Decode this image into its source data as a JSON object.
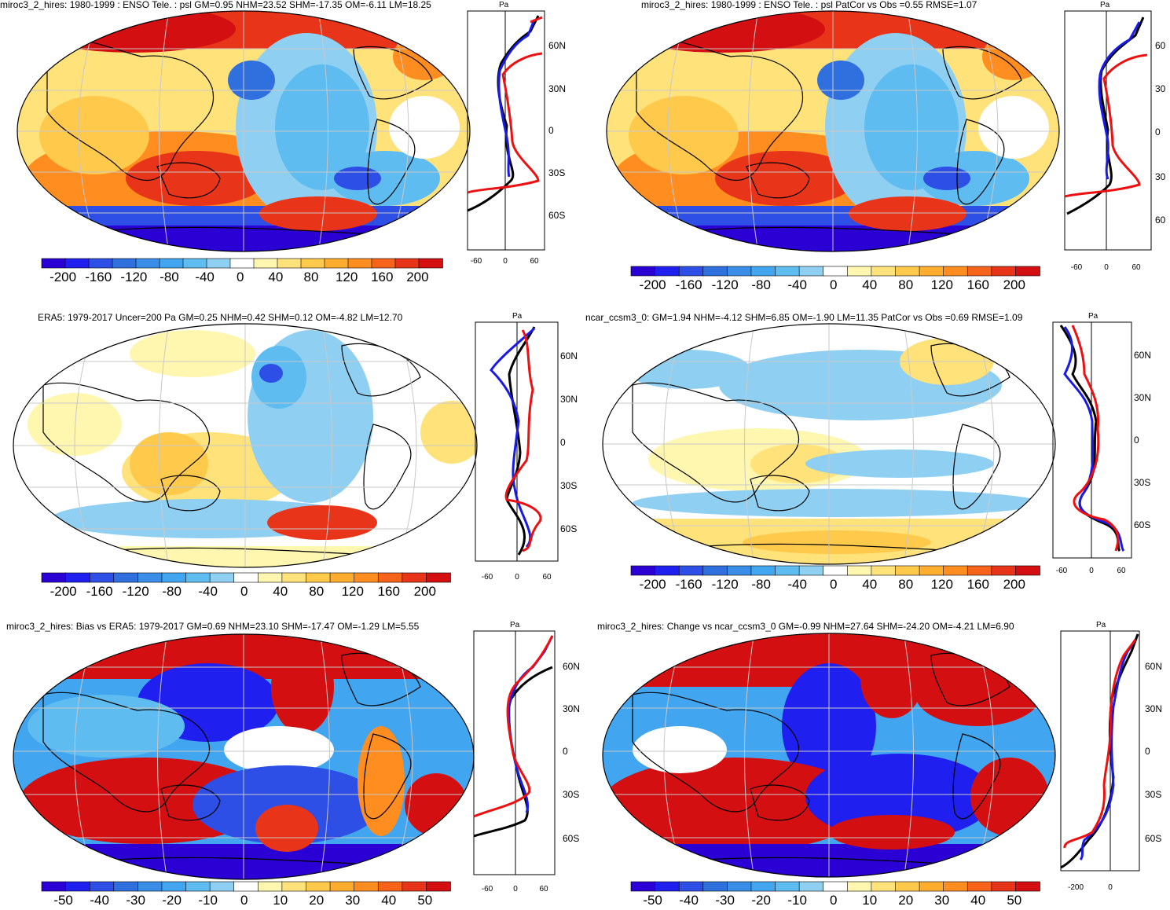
{
  "colors": {
    "palette_blue_to_red": [
      "#2a00d4",
      "#1f1ff0",
      "#2d4fe6",
      "#2f6fde",
      "#3a8ee8",
      "#41a6ef",
      "#5ebcf0",
      "#8fd0f2",
      "#ffffff",
      "#fff6b0",
      "#ffe27a",
      "#ffc94b",
      "#ffad2f",
      "#ff8d1f",
      "#f7631a",
      "#e8351a",
      "#d40f12"
    ],
    "land": "#000000",
    "grid": "#c8c8c8",
    "model_line": "#ee1010",
    "obs_line": "#1a1ae6",
    "mean_line": "#000000"
  },
  "panels": [
    {
      "id": "top-left",
      "title": "miroc3_2_hires: 1980-1999 : ENSO Tele. : psl GM=0.95 NHM=23.52 SHM=-17.35 OM=-6.11 LM=18.25",
      "colorbar_labels": [
        "-200",
        "-160",
        "-120",
        "-80",
        "-40",
        "0",
        "40",
        "80",
        "120",
        "160",
        "200"
      ],
      "side_unit": "Pa",
      "side_lat_labels": [
        "60N",
        "30N",
        "0",
        "30S",
        "60S"
      ],
      "side_x_labels": [
        "-60",
        "0",
        "60"
      ]
    },
    {
      "id": "top-right",
      "title": "miroc3_2_hires: 1980-1999 : ENSO Tele. : psl PatCor vs Obs =0.55 RMSE=1.07",
      "colorbar_labels": [
        "-200",
        "-160",
        "-120",
        "-80",
        "-40",
        "0",
        "40",
        "80",
        "120",
        "160",
        "200"
      ],
      "side_unit": "Pa",
      "side_lat_labels": [
        "60",
        "30",
        "0",
        "30",
        "60"
      ],
      "side_x_labels": [
        "-60",
        "0",
        "60"
      ]
    },
    {
      "id": "middle-left",
      "title": "ERA5: 1979-2017 Uncer=200 Pa GM=0.25 NHM=0.42 SHM=0.12 OM=-4.82 LM=12.70",
      "colorbar_labels": [
        "-200",
        "-160",
        "-120",
        "-80",
        "-40",
        "0",
        "40",
        "80",
        "120",
        "160",
        "200"
      ],
      "side_unit": "Pa",
      "side_lat_labels": [
        "60N",
        "30N",
        "0",
        "30S",
        "60S"
      ],
      "side_x_labels": [
        "-60",
        "0",
        "60"
      ]
    },
    {
      "id": "middle-right",
      "title": "ncar_ccsm3_0: GM=1.94 NHM=-4.12 SHM=6.85 OM=-1.90 LM=11.35 PatCor vs Obs =0.69 RMSE=1.09",
      "colorbar_labels": [
        "-200",
        "-160",
        "-120",
        "-80",
        "-40",
        "0",
        "40",
        "80",
        "120",
        "160",
        "200"
      ],
      "side_unit": "Pa",
      "side_lat_labels": [
        "60N",
        "30N",
        "0",
        "30S",
        "60S"
      ],
      "side_x_labels": [
        "-60",
        "0",
        "60"
      ]
    },
    {
      "id": "bottom-left",
      "title": "miroc3_2_hires: Bias vs ERA5: 1979-2017 GM=0.69 NHM=23.10 SHM=-17.47 OM=-1.29 LM=5.55",
      "colorbar_labels": [
        "-50",
        "-40",
        "-30",
        "-20",
        "-10",
        "0",
        "10",
        "20",
        "30",
        "40",
        "50"
      ],
      "side_unit": "Pa",
      "side_lat_labels": [
        "60N",
        "30N",
        "0",
        "30S",
        "60S"
      ],
      "side_x_labels": [
        "-60",
        "0",
        "60"
      ]
    },
    {
      "id": "bottom-right",
      "title": "miroc3_2_hires: Change vs ncar_ccsm3_0 GM=-0.99 NHM=27.64 SHM=-24.20 OM=-4.21 LM=6.90",
      "colorbar_labels": [
        "-50",
        "-40",
        "-30",
        "-20",
        "-10",
        "0",
        "10",
        "20",
        "30",
        "40",
        "50"
      ],
      "side_unit": "Pa",
      "side_lat_labels": [
        "60N",
        "30N",
        "0",
        "30S",
        "60S"
      ],
      "side_x_labels": [
        "-200",
        "0"
      ]
    }
  ]
}
